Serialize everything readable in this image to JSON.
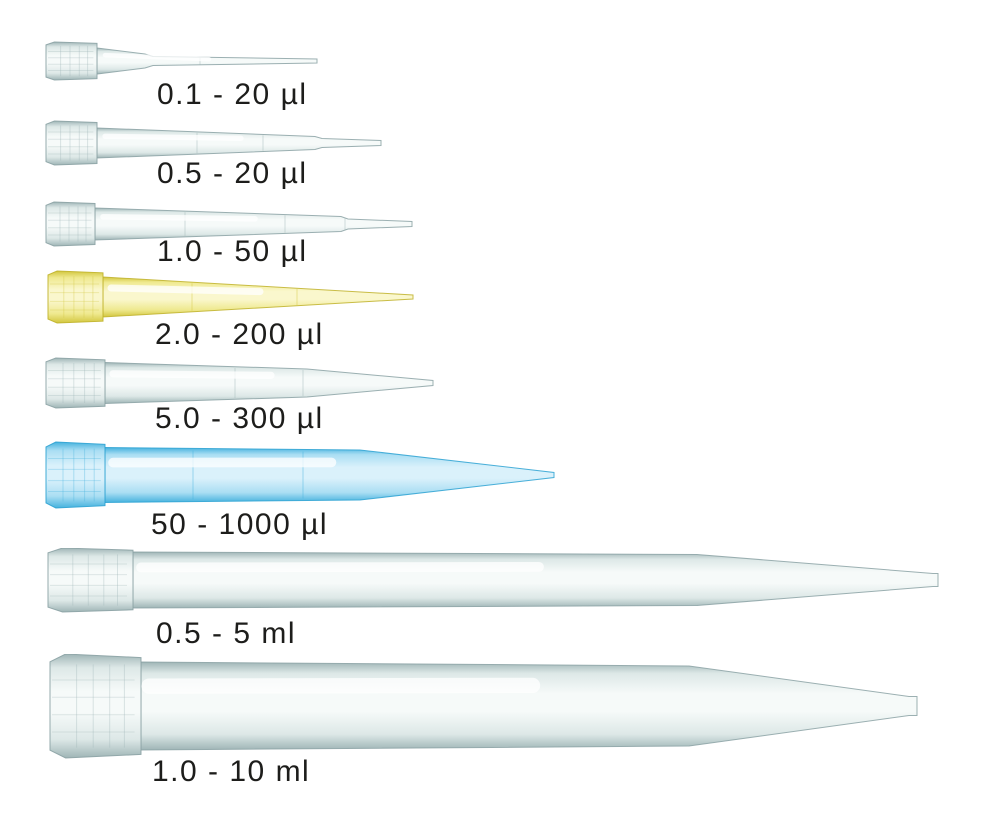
{
  "figure": {
    "background": "#ffffff",
    "text_color": "#1d1d1b",
    "tips": [
      {
        "label": "0.1 - 20 µl",
        "color": "clear"
      },
      {
        "label": "0.5 - 20 µl",
        "color": "clear"
      },
      {
        "label": "1.0 - 50 µl",
        "color": "clear"
      },
      {
        "label": "2.0 - 200 µl",
        "color": "yellow"
      },
      {
        "label": "5.0 - 300 µl",
        "color": "clear"
      },
      {
        "label": "50 - 1000 µl",
        "color": "blue"
      },
      {
        "label": "0.5 - 5 ml",
        "color": "clear"
      },
      {
        "label": "1.0 - 10 ml",
        "color": "clear"
      }
    ],
    "palette": {
      "clear": {
        "edge": "#9fb5b6",
        "edge_dark": "#8ba2a4",
        "mid": "#dde8e7",
        "light": "#f6faf9"
      },
      "yellow": {
        "edge": "#d2c63e",
        "edge_dark": "#c0b22a",
        "mid": "#efe98f",
        "light": "#faf7cd"
      },
      "blue": {
        "edge": "#45b2de",
        "edge_dark": "#2da2d2",
        "mid": "#aadef3",
        "light": "#daf1fb"
      }
    }
  }
}
